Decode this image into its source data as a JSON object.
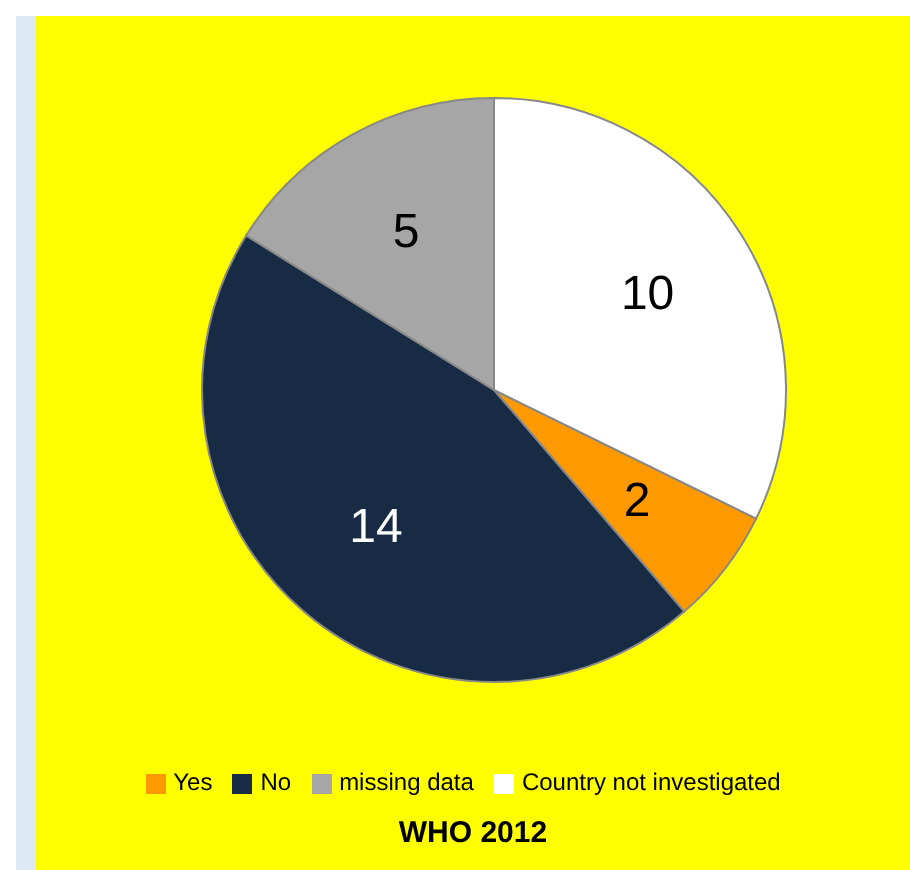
{
  "chart_data": {
    "type": "pie",
    "title": "WHO 2012",
    "categories": [
      "Yes",
      "No",
      "missing data",
      "Country not investigated"
    ],
    "values": [
      2,
      14,
      5,
      10
    ],
    "colors": [
      "#ff9900",
      "#172b45",
      "#a6a6a6",
      "#ffffff"
    ],
    "data_labels": true,
    "legend": "bottom"
  }
}
